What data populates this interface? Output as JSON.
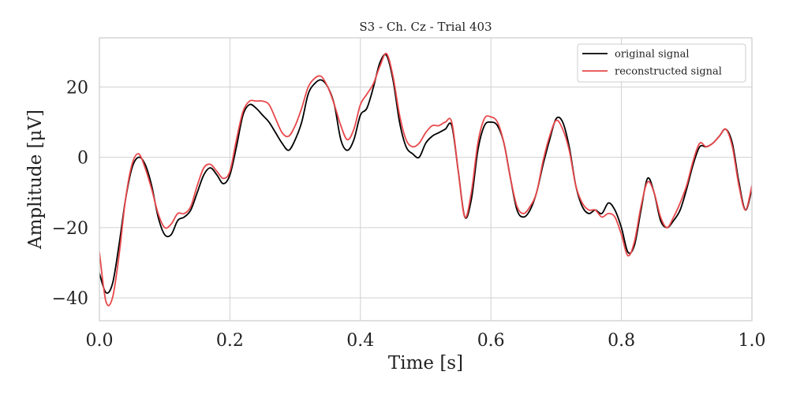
{
  "chart_data": {
    "type": "line",
    "title": "S3 - Ch. Cz - Trial 403",
    "xlabel": "Time [s]",
    "ylabel": "Amplitude [μV]",
    "xlim": [
      0.0,
      1.0
    ],
    "ylim": [
      -46.5,
      34
    ],
    "xticks": [
      0.0,
      0.2,
      0.4,
      0.6,
      0.8,
      1.0
    ],
    "xtick_labels": [
      "0.0",
      "0.2",
      "0.4",
      "0.6",
      "0.8",
      "1.0"
    ],
    "yticks": [
      -40,
      -20,
      0,
      20
    ],
    "ytick_labels": [
      "−40",
      "−20",
      "0",
      "20"
    ],
    "grid": true,
    "legend": "top-right",
    "series": [
      {
        "name": "original signal",
        "color": "#000000",
        "x": [
          0.0,
          0.01,
          0.02,
          0.03,
          0.04,
          0.05,
          0.06,
          0.07,
          0.08,
          0.09,
          0.1,
          0.11,
          0.12,
          0.13,
          0.14,
          0.15,
          0.16,
          0.17,
          0.18,
          0.19,
          0.2,
          0.21,
          0.22,
          0.23,
          0.24,
          0.25,
          0.26,
          0.27,
          0.28,
          0.29,
          0.3,
          0.31,
          0.32,
          0.33,
          0.34,
          0.35,
          0.36,
          0.37,
          0.38,
          0.39,
          0.4,
          0.41,
          0.42,
          0.43,
          0.44,
          0.45,
          0.46,
          0.47,
          0.48,
          0.49,
          0.5,
          0.51,
          0.52,
          0.53,
          0.54,
          0.55,
          0.56,
          0.57,
          0.58,
          0.59,
          0.6,
          0.61,
          0.62,
          0.63,
          0.64,
          0.65,
          0.66,
          0.67,
          0.68,
          0.69,
          0.7,
          0.71,
          0.72,
          0.73,
          0.74,
          0.75,
          0.76,
          0.77,
          0.78,
          0.79,
          0.8,
          0.81,
          0.82,
          0.83,
          0.84,
          0.85,
          0.86,
          0.87,
          0.88,
          0.89,
          0.9,
          0.91,
          0.92,
          0.93,
          0.94,
          0.95,
          0.96,
          0.97,
          0.98,
          0.99,
          1.0
        ],
        "values": [
          -33,
          -38.5,
          -36,
          -25,
          -12,
          -3,
          0,
          -2,
          -8,
          -17,
          -22,
          -22,
          -18,
          -17,
          -15,
          -10,
          -5,
          -3,
          -5,
          -7.5,
          -5,
          3,
          12,
          15,
          14,
          12,
          10,
          7,
          4,
          2,
          5,
          10,
          18,
          21,
          22,
          20,
          15,
          5,
          2,
          5,
          12,
          14,
          20,
          27,
          29,
          22,
          10,
          3,
          1,
          0,
          4,
          6,
          7,
          8,
          9,
          -4,
          -17,
          -12,
          2,
          9,
          10,
          9,
          4,
          -6,
          -15,
          -17,
          -15,
          -10,
          -2,
          5,
          11,
          10,
          3,
          -8,
          -14,
          -16,
          -15,
          -16,
          -13,
          -15,
          -20,
          -27,
          -25,
          -15,
          -6,
          -10,
          -18,
          -20,
          -18,
          -15,
          -9,
          -2,
          3,
          3,
          4,
          6,
          8,
          4,
          -7,
          -15,
          -9
        ]
      },
      {
        "name": "reconstructed signal",
        "color": "#e8474a",
        "x": [
          0.0,
          0.01,
          0.02,
          0.03,
          0.04,
          0.05,
          0.06,
          0.07,
          0.08,
          0.09,
          0.1,
          0.11,
          0.12,
          0.13,
          0.14,
          0.15,
          0.16,
          0.17,
          0.18,
          0.19,
          0.2,
          0.21,
          0.22,
          0.23,
          0.24,
          0.25,
          0.26,
          0.27,
          0.28,
          0.29,
          0.3,
          0.31,
          0.32,
          0.33,
          0.34,
          0.35,
          0.36,
          0.37,
          0.38,
          0.39,
          0.4,
          0.41,
          0.42,
          0.43,
          0.44,
          0.45,
          0.46,
          0.47,
          0.48,
          0.49,
          0.5,
          0.51,
          0.52,
          0.53,
          0.54,
          0.55,
          0.56,
          0.57,
          0.58,
          0.59,
          0.6,
          0.61,
          0.62,
          0.63,
          0.64,
          0.65,
          0.66,
          0.67,
          0.68,
          0.69,
          0.7,
          0.71,
          0.72,
          0.73,
          0.74,
          0.75,
          0.76,
          0.77,
          0.78,
          0.79,
          0.8,
          0.81,
          0.82,
          0.83,
          0.84,
          0.85,
          0.86,
          0.87,
          0.88,
          0.89,
          0.9,
          0.91,
          0.92,
          0.93,
          0.94,
          0.95,
          0.96,
          0.97,
          0.98,
          0.99,
          1.0
        ],
        "values": [
          -27,
          -41,
          -40,
          -28,
          -12,
          -2,
          1,
          -3,
          -9,
          -16,
          -20,
          -19,
          -16,
          -16,
          -14,
          -8,
          -3,
          -2,
          -4,
          -6,
          -4,
          5,
          13,
          16,
          16,
          16,
          15,
          11,
          7,
          6,
          9,
          14,
          20,
          22.5,
          23,
          20,
          15,
          9,
          5,
          8,
          15,
          18,
          21,
          26,
          29.5,
          23,
          12,
          5,
          3,
          4,
          7,
          9,
          9,
          10,
          10,
          -4,
          -17,
          -10,
          4,
          11,
          11.5,
          10,
          4,
          -6,
          -14,
          -16,
          -14,
          -10,
          -1,
          6,
          10.5,
          8,
          2,
          -8,
          -13,
          -15,
          -15,
          -17,
          -16,
          -17,
          -22,
          -28,
          -24,
          -14,
          -7,
          -10,
          -17,
          -20,
          -17,
          -13,
          -8,
          -1,
          4,
          3,
          4,
          6,
          8,
          3,
          -8,
          -15,
          -8
        ]
      }
    ]
  }
}
